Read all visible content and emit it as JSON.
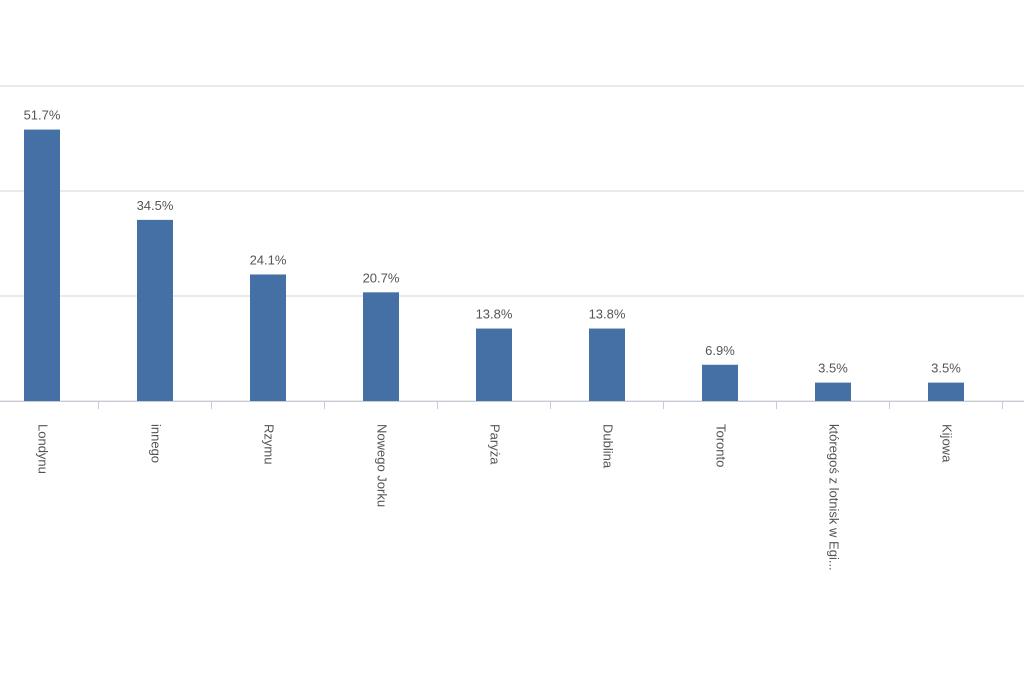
{
  "chart_data": {
    "type": "bar",
    "categories": [
      "Londynu",
      "innego",
      "Rzymu",
      "Nowego Jorku",
      "Paryża",
      "Dublina",
      "Toronto",
      "któregoś z lotnisk w Egi...",
      "Kijowa"
    ],
    "values": [
      51.7,
      34.5,
      24.1,
      20.7,
      13.8,
      13.8,
      6.9,
      3.5,
      3.5
    ],
    "value_labels": [
      "51.7%",
      "34.5%",
      "24.1%",
      "20.7%",
      "13.8%",
      "13.8%",
      "6.9%",
      "3.5%",
      "3.5%"
    ],
    "color": "#4470a6",
    "ylim": [
      0,
      60
    ],
    "yticks": [
      0,
      20,
      40,
      60
    ],
    "grid": true
  }
}
